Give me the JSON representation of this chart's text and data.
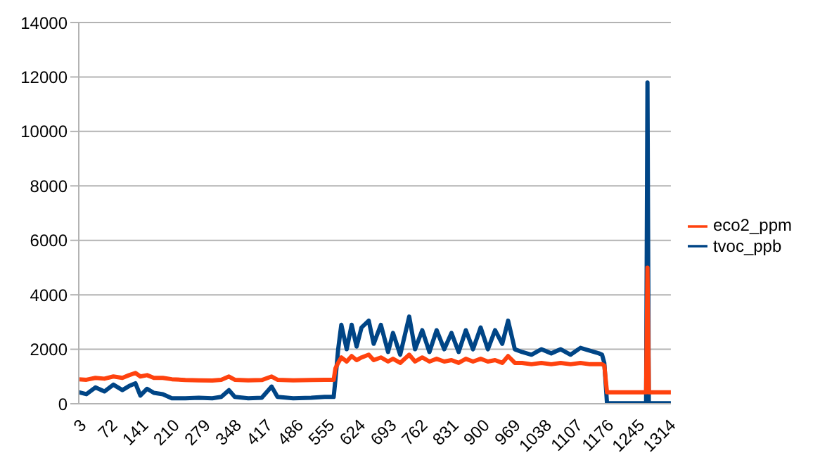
{
  "chart_data": {
    "type": "line",
    "x": [
      3,
      20,
      40,
      60,
      80,
      100,
      115,
      129,
      140,
      155,
      170,
      190,
      210,
      240,
      270,
      300,
      320,
      337,
      350,
      380,
      410,
      432,
      445,
      480,
      520,
      550,
      570,
      574,
      580,
      587,
      599,
      610,
      621,
      632,
      648,
      659,
      675,
      691,
      702,
      718,
      738,
      751,
      767,
      783,
      799,
      816,
      832,
      848,
      864,
      880,
      897,
      913,
      929,
      945,
      958,
      973,
      989,
      1010,
      1032,
      1054,
      1075,
      1097,
      1119,
      1140,
      1160,
      1167,
      1172,
      1178,
      1200,
      1240,
      1265,
      1268,
      1271,
      1300,
      1320
    ],
    "series": [
      {
        "name": "tvoc_ppb",
        "color": "#004586",
        "values": [
          420,
          350,
          600,
          450,
          700,
          500,
          650,
          750,
          300,
          550,
          400,
          350,
          200,
          200,
          220,
          200,
          250,
          500,
          250,
          200,
          220,
          630,
          250,
          200,
          220,
          250,
          250,
          900,
          2000,
          2900,
          2000,
          2900,
          2100,
          2800,
          3050,
          2200,
          2900,
          1900,
          2600,
          1800,
          3200,
          2000,
          2700,
          1900,
          2700,
          2000,
          2600,
          1900,
          2700,
          2000,
          2800,
          2000,
          2700,
          2200,
          3050,
          2000,
          1900,
          1800,
          2000,
          1850,
          2000,
          1800,
          2050,
          1950,
          1850,
          1800,
          1500,
          20,
          20,
          20,
          20,
          11800,
          20,
          20,
          20
        ]
      },
      {
        "name": "eco2_ppm",
        "color": "#ff420e",
        "values": [
          900,
          880,
          950,
          920,
          1000,
          950,
          1050,
          1130,
          1000,
          1050,
          950,
          950,
          900,
          870,
          860,
          850,
          880,
          1000,
          880,
          860,
          870,
          1000,
          880,
          860,
          870,
          880,
          880,
          1300,
          1500,
          1700,
          1550,
          1750,
          1600,
          1700,
          1800,
          1600,
          1700,
          1550,
          1650,
          1500,
          1800,
          1550,
          1700,
          1550,
          1650,
          1550,
          1600,
          1500,
          1650,
          1550,
          1650,
          1550,
          1600,
          1500,
          1750,
          1500,
          1500,
          1450,
          1500,
          1450,
          1500,
          1450,
          1500,
          1450,
          1450,
          1450,
          1400,
          420,
          420,
          420,
          420,
          5000,
          420,
          420,
          420
        ]
      }
    ],
    "xlim": [
      3,
      1320
    ],
    "xticks": [
      3,
      72,
      141,
      210,
      279,
      348,
      417,
      486,
      555,
      624,
      693,
      762,
      831,
      900,
      969,
      1038,
      1107,
      1176,
      1245,
      1314
    ],
    "ylim": [
      0,
      14000
    ],
    "yticks": [
      0,
      2000,
      4000,
      6000,
      8000,
      10000,
      12000,
      14000
    ],
    "grid": "y",
    "legend": "right",
    "marker": "none",
    "line_style": "solid"
  }
}
